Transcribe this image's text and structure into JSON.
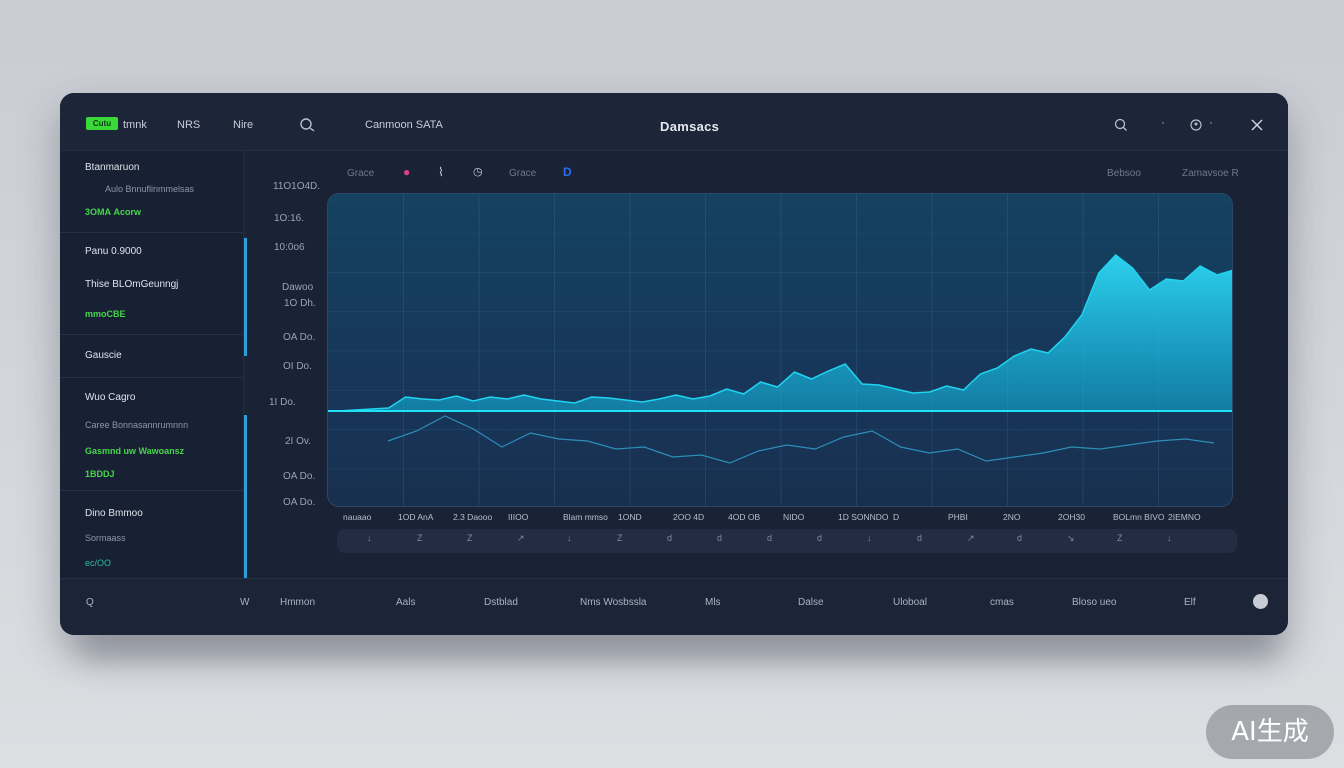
{
  "header": {
    "badge": "Cutu",
    "nav": [
      "tmnk",
      "NRS",
      "Nire"
    ],
    "search_label": "Canmoon SATA",
    "title": "Damsacs"
  },
  "sidebar": {
    "section1": {
      "title": "Btanmaruon",
      "sub": "Aulo Bnnuflinmmelsas",
      "value": "3OMA Acorw"
    },
    "section2": {
      "title": "Panu 0.9000",
      "sub": "Thise BLOmGeunngj",
      "value": "mmoCBE"
    },
    "section3": {
      "title": "Gauscie"
    },
    "section4": {
      "title": "Wuo Cagro",
      "sub": "Caree Bonnasannrumnnn",
      "value": "Gasmnd uw Wawoansz",
      "value2": "1BDDJ"
    },
    "section5": {
      "title": "Dino Bmmoo",
      "sub": "Sormaass",
      "value": "ec/OO"
    }
  },
  "toolbar": {
    "left": "Grace",
    "right1": "Bebsoo",
    "right2": "Zamavsoe R"
  },
  "chart_data": {
    "type": "area",
    "title": "",
    "y_tick_labels": [
      "11O1O4D.",
      "1O:16.",
      "10:0o6",
      "Dawoo",
      "1O Dh.",
      "OA Do.",
      "OI Do.",
      "1I Do.",
      "2I Ov.",
      "OA Do.",
      "OA Do."
    ],
    "x_labels": [
      "nauaao",
      "1OD AnA",
      "2.3 Daooo",
      "IIIOO",
      "Blam mmso",
      "1OND",
      "2OO 4D",
      "4OD OB",
      "NIDO",
      "1D SONNDO",
      "D",
      "PHBI",
      "2NO",
      "2OH30",
      "BOLmn BIVO",
      "2IEMNO"
    ],
    "x_ticks": [
      "↓",
      "Z",
      "Z",
      "↗",
      "↓",
      "Z",
      "d",
      "d",
      "d",
      "d",
      "↓",
      "d",
      "↗",
      "d",
      "↘",
      "Z",
      "↓"
    ],
    "series": [
      {
        "name": "main",
        "color": "#1fd4f0",
        "values": [
          0,
          1,
          2,
          3,
          14,
          12,
          11,
          15,
          10,
          14,
          12,
          16,
          12,
          10,
          8,
          14,
          13,
          11,
          9,
          12,
          16,
          12,
          15,
          22,
          17,
          29,
          24,
          39,
          32,
          40,
          47,
          27,
          26,
          22,
          18,
          19,
          25,
          21,
          37,
          43,
          55,
          62,
          58,
          74,
          96,
          138,
          156,
          143,
          121,
          132,
          130,
          145,
          136,
          141
        ]
      },
      {
        "name": "secondary",
        "color": "#2c8fb8",
        "values": [
          -30,
          -20,
          -5,
          -18,
          -36,
          -22,
          -28,
          -30,
          -38,
          -36,
          -46,
          -44,
          -52,
          -40,
          -34,
          -38,
          -26,
          -20,
          -36,
          -42,
          -38,
          -50,
          -46,
          -42,
          -36,
          -38,
          -34,
          -30,
          -28,
          -32
        ]
      }
    ]
  },
  "footer": {
    "items": [
      "Q",
      "W",
      "Hmmon",
      "Aals",
      "Dstblad",
      "Nms Wosbssla",
      "Mls",
      "Dalse",
      "Uloboal",
      "cmas",
      "Bloso ueo",
      "Elf"
    ]
  },
  "colors": {
    "accent": "#2d9fd8",
    "chart_main": "#1fd4f0",
    "badge": "#3bd83a"
  },
  "watermark": "AI生成"
}
